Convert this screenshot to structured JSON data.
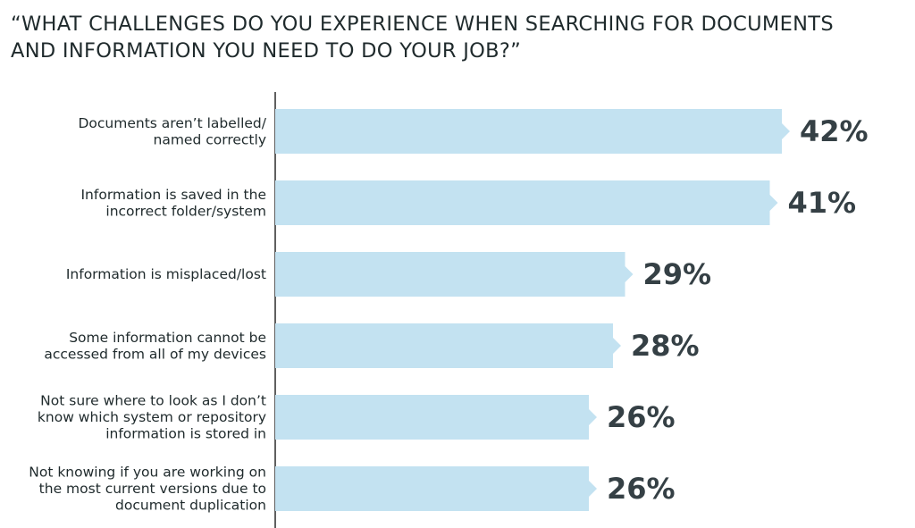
{
  "chart_data": {
    "type": "bar",
    "orientation": "horizontal",
    "title_lines": [
      "“WHAT CHALLENGES DO YOU EXPERIENCE WHEN SEARCHING FOR DOCUMENTS",
      "AND INFORMATION YOU NEED TO DO YOUR JOB?”"
    ],
    "categories": [
      [
        "Documents aren’t labelled/",
        "named correctly"
      ],
      [
        "Information is saved in the",
        "incorrect folder/system"
      ],
      [
        "Information is misplaced/lost"
      ],
      [
        "Some information cannot be",
        "accessed from all of my devices"
      ],
      [
        "Not sure where to look as I don’t",
        "know which system or repository",
        "information is stored in"
      ],
      [
        "Not knowing if you are working on",
        "the most current versions due to",
        "document duplication"
      ]
    ],
    "values": [
      42,
      41,
      29,
      28,
      26,
      26
    ],
    "value_labels": [
      "42%",
      "41%",
      "29%",
      "28%",
      "26%",
      "26%"
    ],
    "unit": "%",
    "bar_color": "#c3e2f1",
    "axis_color": "#2b2b2b",
    "value_color": "#354045",
    "grid": false,
    "legend": "none"
  }
}
